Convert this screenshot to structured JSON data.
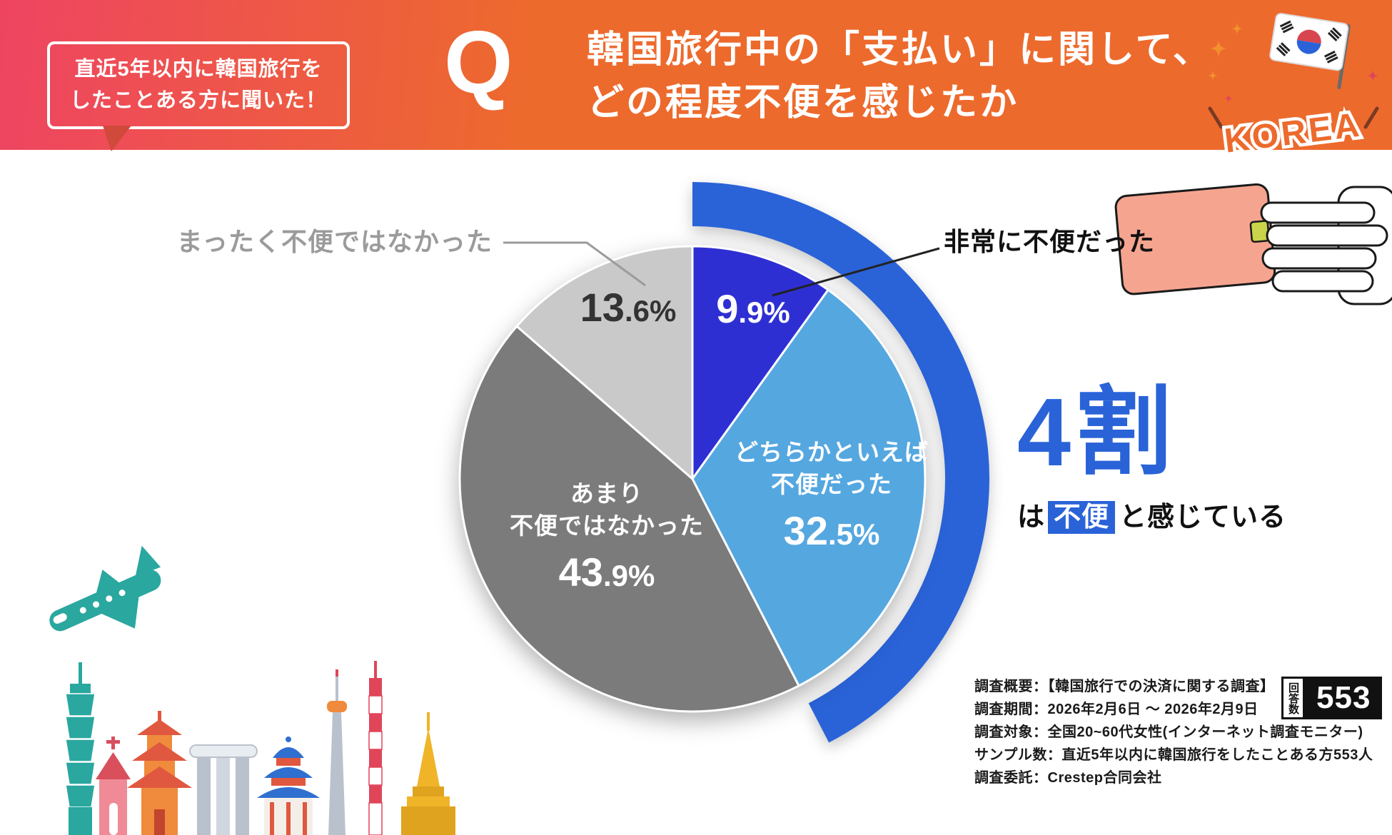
{
  "header": {
    "audience_note_line1": "直近5年以内に韓国旅行を",
    "audience_note_line2": "したことある方に聞いた！",
    "q_label": "Q",
    "title_line1": "韓国旅行中の「支払い」に関して、",
    "title_line2": "どの程度不便を感じたか",
    "korea_label": "KOREA"
  },
  "chart_data": {
    "type": "pie",
    "title": "韓国旅行中の「支払い」に関して、どの程度不便を感じたか",
    "start_angle_deg": 0,
    "direction": "clockwise",
    "segments": [
      {
        "label": "非常に不便だった",
        "label_lines": [
          "非常に不便だった"
        ],
        "value": 9.9,
        "value_int": "9",
        "value_dec": ".9%",
        "color": "#2e2fd3"
      },
      {
        "label": "どちらかといえば不便だった",
        "label_lines": [
          "どちらかといえば",
          "不便だった"
        ],
        "value": 32.5,
        "value_int": "32",
        "value_dec": ".5%",
        "color": "#55a7e0"
      },
      {
        "label": "あまり不便ではなかった",
        "label_lines": [
          "あまり",
          "不便ではなかった"
        ],
        "value": 43.9,
        "value_int": "43",
        "value_dec": ".9%",
        "color": "#7b7b7b"
      },
      {
        "label": "まったく不便ではなかった",
        "label_lines": [
          "まったく不便ではなかった"
        ],
        "value": 13.6,
        "value_int": "13",
        "value_dec": ".6%",
        "color": "#c9c9c9"
      }
    ],
    "highlight_arc": {
      "percent": 42.4,
      "color": "#2a63d8"
    },
    "conclusion": {
      "big": "4割",
      "prefix": "は",
      "highlight": "不便",
      "suffix": "と感じている",
      "color": "#2a63d8"
    }
  },
  "survey": {
    "lines": [
      "調査概要：【韓国旅行での決済に関する調査】",
      "調査期間：2026年2月6日 ～ 2026年2月9日",
      "調査対象：全国20~60代女性(インターネット調査モニター)",
      "サンプル数：直近5年以内に韓国旅行をしたことある方553人",
      "調査委託：Crestep合同会社"
    ],
    "respondents_label": "回答数",
    "respondents_value": "553"
  }
}
